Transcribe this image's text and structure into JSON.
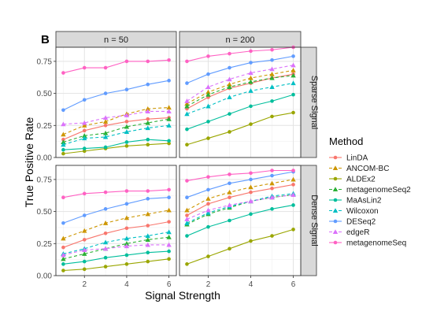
{
  "panel_tag": "B",
  "chart_data": {
    "type": "line",
    "xlabel": "Signal Strength",
    "ylabel": "True Positive Rate",
    "xlim": [
      0.65,
      6.35
    ],
    "ylim": [
      0,
      0.86
    ],
    "x_ticks": [
      2,
      4,
      6
    ],
    "y_ticks": [
      0,
      0.25,
      0.5,
      0.75
    ],
    "y_tick_labels": [
      "0.00",
      "0.25",
      "0.50",
      "0.75"
    ],
    "x": [
      1,
      2,
      3,
      4,
      5,
      6
    ],
    "grid": true,
    "legend_position": "right",
    "legend": {
      "title": "Method",
      "entries": [
        {
          "name": "LinDA",
          "color": "#F8766D",
          "marker": "circle",
          "dashed": false
        },
        {
          "name": "ANCOM-BC",
          "color": "#CD9600",
          "marker": "triangle",
          "dashed": true
        },
        {
          "name": "ALDEx2",
          "color": "#9AA600",
          "marker": "circle",
          "dashed": false
        },
        {
          "name": "metagenomeSeq2",
          "color": "#2CB036",
          "marker": "triangle",
          "dashed": true
        },
        {
          "name": "MaAsLin2",
          "color": "#00BE9C",
          "marker": "circle",
          "dashed": false
        },
        {
          "name": "Wilcoxon",
          "color": "#00BFC4",
          "marker": "triangle",
          "dashed": true
        },
        {
          "name": "DESeq2",
          "color": "#619CFF",
          "marker": "circle",
          "dashed": false
        },
        {
          "name": "edgeR",
          "color": "#DB72FB",
          "marker": "triangle",
          "dashed": true
        },
        {
          "name": "metagenomeSeq",
          "color": "#FF61C3",
          "marker": "circle",
          "dashed": false
        }
      ]
    },
    "col_strips": [
      "n = 50",
      "n = 200"
    ],
    "row_strips": [
      "Sparse Signal",
      "Dense Signal"
    ],
    "panels": [
      {
        "col": 0,
        "row": 0,
        "series": [
          {
            "name": "LinDA",
            "values": [
              0.14,
              0.21,
              0.25,
              0.28,
              0.3,
              0.31
            ]
          },
          {
            "name": "ANCOM-BC",
            "values": [
              0.18,
              0.25,
              0.28,
              0.34,
              0.38,
              0.39
            ]
          },
          {
            "name": "ALDEx2",
            "values": [
              0.03,
              0.05,
              0.07,
              0.09,
              0.1,
              0.11
            ]
          },
          {
            "name": "metagenomeSeq2",
            "values": [
              0.12,
              0.17,
              0.19,
              0.24,
              0.27,
              0.3
            ]
          },
          {
            "name": "MaAsLin2",
            "values": [
              0.06,
              0.07,
              0.08,
              0.12,
              0.14,
              0.13
            ]
          },
          {
            "name": "Wilcoxon",
            "values": [
              0.1,
              0.15,
              0.16,
              0.2,
              0.23,
              0.25
            ]
          },
          {
            "name": "DESeq2",
            "values": [
              0.37,
              0.45,
              0.5,
              0.53,
              0.57,
              0.6
            ]
          },
          {
            "name": "edgeR",
            "values": [
              0.26,
              0.27,
              0.31,
              0.33,
              0.36,
              0.36
            ]
          },
          {
            "name": "metagenomeSeq",
            "values": [
              0.66,
              0.7,
              0.7,
              0.75,
              0.75,
              0.76
            ]
          }
        ]
      },
      {
        "col": 1,
        "row": 0,
        "series": [
          {
            "name": "LinDA",
            "values": [
              0.38,
              0.47,
              0.54,
              0.58,
              0.62,
              0.65
            ]
          },
          {
            "name": "ANCOM-BC",
            "values": [
              0.42,
              0.51,
              0.57,
              0.62,
              0.65,
              0.68
            ]
          },
          {
            "name": "ALDEx2",
            "values": [
              0.1,
              0.15,
              0.2,
              0.26,
              0.32,
              0.35
            ]
          },
          {
            "name": "metagenomeSeq2",
            "values": [
              0.4,
              0.49,
              0.55,
              0.59,
              0.62,
              0.64
            ]
          },
          {
            "name": "MaAsLin2",
            "values": [
              0.22,
              0.28,
              0.34,
              0.4,
              0.44,
              0.49
            ]
          },
          {
            "name": "Wilcoxon",
            "values": [
              0.34,
              0.4,
              0.47,
              0.52,
              0.55,
              0.58
            ]
          },
          {
            "name": "DESeq2",
            "values": [
              0.58,
              0.65,
              0.7,
              0.74,
              0.76,
              0.79
            ]
          },
          {
            "name": "edgeR",
            "values": [
              0.44,
              0.55,
              0.61,
              0.66,
              0.69,
              0.72
            ]
          },
          {
            "name": "metagenomeSeq",
            "values": [
              0.75,
              0.79,
              0.81,
              0.83,
              0.84,
              0.86
            ]
          }
        ]
      },
      {
        "col": 0,
        "row": 1,
        "series": [
          {
            "name": "LinDA",
            "values": [
              0.22,
              0.28,
              0.33,
              0.37,
              0.39,
              0.42
            ]
          },
          {
            "name": "ANCOM-BC",
            "values": [
              0.29,
              0.35,
              0.41,
              0.45,
              0.48,
              0.51
            ]
          },
          {
            "name": "ALDEx2",
            "values": [
              0.04,
              0.05,
              0.07,
              0.09,
              0.11,
              0.13
            ]
          },
          {
            "name": "metagenomeSeq2",
            "values": [
              0.13,
              0.17,
              0.21,
              0.25,
              0.28,
              0.3
            ]
          },
          {
            "name": "MaAsLin2",
            "values": [
              0.09,
              0.11,
              0.14,
              0.16,
              0.18,
              0.19
            ]
          },
          {
            "name": "Wilcoxon",
            "values": [
              0.17,
              0.21,
              0.26,
              0.29,
              0.31,
              0.34
            ]
          },
          {
            "name": "DESeq2",
            "values": [
              0.41,
              0.47,
              0.52,
              0.56,
              0.6,
              0.61
            ]
          },
          {
            "name": "edgeR",
            "values": [
              0.16,
              0.2,
              0.21,
              0.23,
              0.24,
              0.24
            ]
          },
          {
            "name": "metagenomeSeq",
            "values": [
              0.61,
              0.64,
              0.65,
              0.66,
              0.66,
              0.67
            ]
          }
        ]
      },
      {
        "col": 1,
        "row": 1,
        "series": [
          {
            "name": "LinDA",
            "values": [
              0.47,
              0.56,
              0.61,
              0.65,
              0.68,
              0.71
            ]
          },
          {
            "name": "ANCOM-BC",
            "values": [
              0.51,
              0.6,
              0.65,
              0.69,
              0.72,
              0.75
            ]
          },
          {
            "name": "ALDEx2",
            "values": [
              0.09,
              0.15,
              0.21,
              0.27,
              0.31,
              0.36
            ]
          },
          {
            "name": "metagenomeSeq2",
            "values": [
              0.4,
              0.48,
              0.53,
              0.58,
              0.61,
              0.63
            ]
          },
          {
            "name": "MaAsLin2",
            "values": [
              0.31,
              0.38,
              0.43,
              0.48,
              0.52,
              0.55
            ]
          },
          {
            "name": "Wilcoxon",
            "values": [
              0.41,
              0.49,
              0.54,
              0.58,
              0.62,
              0.64
            ]
          },
          {
            "name": "DESeq2",
            "values": [
              0.61,
              0.67,
              0.72,
              0.75,
              0.78,
              0.81
            ]
          },
          {
            "name": "edgeR",
            "values": [
              0.44,
              0.51,
              0.55,
              0.58,
              0.61,
              0.63
            ]
          },
          {
            "name": "metagenomeSeq",
            "values": [
              0.74,
              0.77,
              0.79,
              0.8,
              0.82,
              0.82
            ]
          }
        ]
      }
    ]
  }
}
